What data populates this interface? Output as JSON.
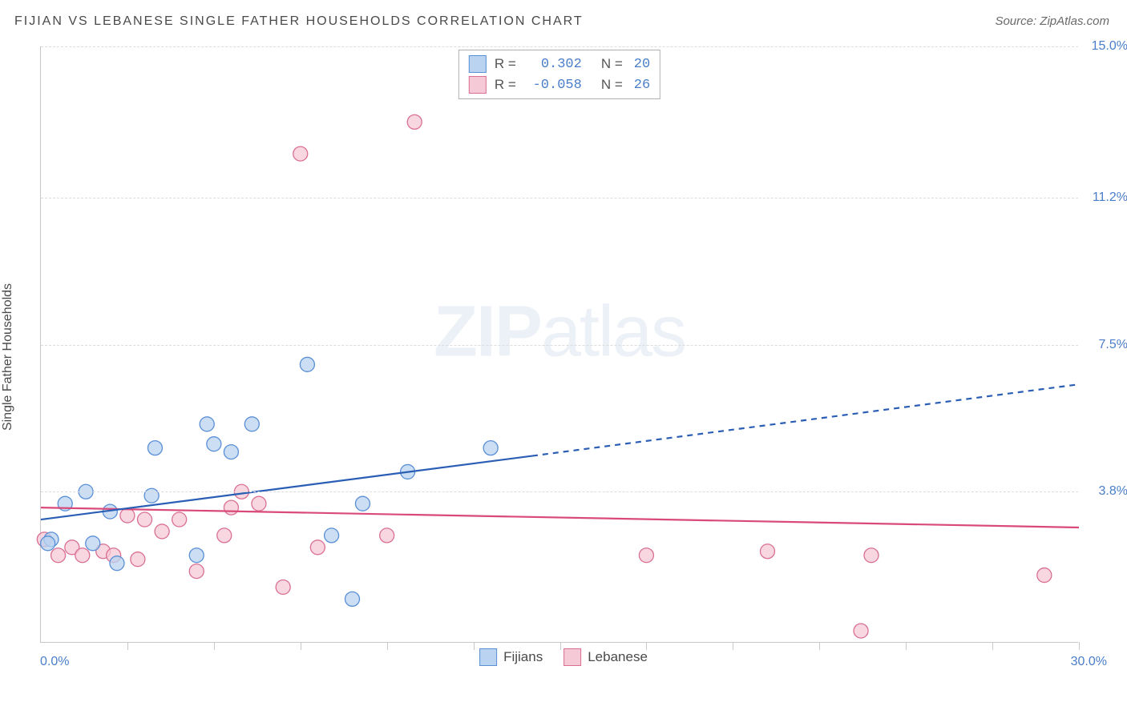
{
  "title": "FIJIAN VS LEBANESE SINGLE FATHER HOUSEHOLDS CORRELATION CHART",
  "source": "Source: ZipAtlas.com",
  "watermark_bold": "ZIP",
  "watermark_light": "atlas",
  "ylabel": "Single Father Households",
  "chart": {
    "type": "scatter",
    "xlim": [
      0.0,
      30.0
    ],
    "ylim": [
      0.0,
      15.0
    ],
    "x_min_label": "0.0%",
    "x_max_label": "30.0%",
    "yticks": [
      3.8,
      7.5,
      11.2,
      15.0
    ],
    "ytick_labels": [
      "3.8%",
      "7.5%",
      "11.2%",
      "15.0%"
    ],
    "xtick_positions": [
      2.5,
      5.0,
      7.5,
      10.0,
      12.5,
      15.0,
      17.5,
      20.0,
      22.5,
      25.0,
      27.5,
      30.0
    ],
    "grid_color": "#dcdcdc",
    "axis_color": "#c8c8c8",
    "background_color": "#ffffff",
    "point_radius": 9,
    "point_opacity": 0.75,
    "trend_line_width": 2.2,
    "series": [
      {
        "name": "Fijians",
        "color_fill": "#b9d3f0",
        "color_stroke": "#5a8fd6",
        "line_color": "#2a5eb5",
        "R": "0.302",
        "N": "20",
        "trend": {
          "x1": 0.0,
          "y1": 3.1,
          "x2": 14.2,
          "y2": 4.7,
          "x2_ext": 30.0,
          "y2_ext": 6.5
        },
        "points": [
          [
            0.3,
            2.6
          ],
          [
            0.7,
            3.5
          ],
          [
            1.3,
            3.8
          ],
          [
            0.2,
            2.5
          ],
          [
            1.5,
            2.5
          ],
          [
            2.0,
            3.3
          ],
          [
            2.2,
            2.0
          ],
          [
            3.2,
            3.7
          ],
          [
            3.3,
            4.9
          ],
          [
            4.5,
            2.2
          ],
          [
            4.8,
            5.5
          ],
          [
            5.5,
            4.8
          ],
          [
            5.0,
            5.0
          ],
          [
            6.1,
            5.5
          ],
          [
            7.7,
            7.0
          ],
          [
            8.4,
            2.7
          ],
          [
            9.3,
            3.5
          ],
          [
            9.0,
            1.1
          ],
          [
            10.6,
            4.3
          ],
          [
            13.0,
            4.9
          ]
        ]
      },
      {
        "name": "Lebanese",
        "color_fill": "#f6c9d6",
        "color_stroke": "#da6f94",
        "line_color": "#d94a7a",
        "R": "-0.058",
        "N": "26",
        "trend": {
          "x1": 0.0,
          "y1": 3.4,
          "x2": 30.0,
          "y2": 2.9,
          "x2_ext": 30.0,
          "y2_ext": 2.9
        },
        "points": [
          [
            0.1,
            2.6
          ],
          [
            0.5,
            2.2
          ],
          [
            0.9,
            2.4
          ],
          [
            1.2,
            2.2
          ],
          [
            1.8,
            2.3
          ],
          [
            2.1,
            2.2
          ],
          [
            2.5,
            3.2
          ],
          [
            2.8,
            2.1
          ],
          [
            3.0,
            3.1
          ],
          [
            3.5,
            2.8
          ],
          [
            4.0,
            3.1
          ],
          [
            4.5,
            1.8
          ],
          [
            5.3,
            2.7
          ],
          [
            5.5,
            3.4
          ],
          [
            5.8,
            3.8
          ],
          [
            6.3,
            3.5
          ],
          [
            7.0,
            1.4
          ],
          [
            7.5,
            12.3
          ],
          [
            8.0,
            2.4
          ],
          [
            10.0,
            2.7
          ],
          [
            10.8,
            13.1
          ],
          [
            17.5,
            2.2
          ],
          [
            21.0,
            2.3
          ],
          [
            24.0,
            2.2
          ],
          [
            23.7,
            0.3
          ],
          [
            29.0,
            1.7
          ]
        ]
      }
    ]
  },
  "legend_top": {
    "r_label": "R =",
    "n_label": "N ="
  },
  "legend_bottom": [
    {
      "label": "Fijians",
      "fill": "#b9d3f0",
      "stroke": "#5a8fd6"
    },
    {
      "label": "Lebanese",
      "fill": "#f6c9d6",
      "stroke": "#da6f94"
    }
  ]
}
